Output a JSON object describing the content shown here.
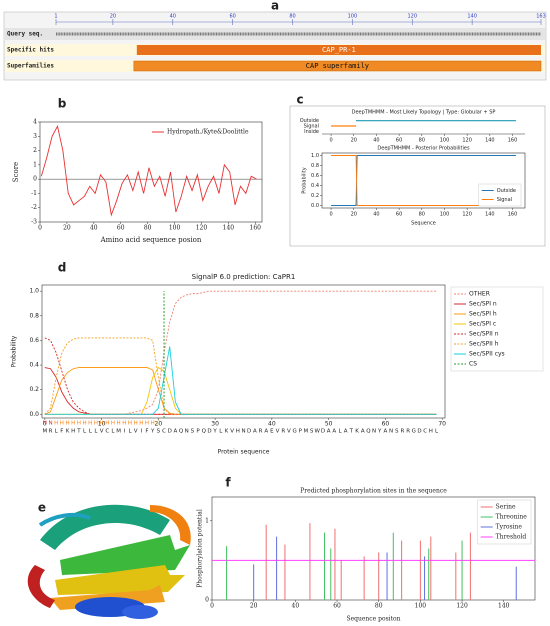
{
  "panel_labels": [
    "a",
    "b",
    "c",
    "d",
    "e",
    "f"
  ],
  "domain_map": {
    "ruler": [
      1,
      20,
      40,
      60,
      80,
      100,
      120,
      140,
      163
    ],
    "rows": [
      {
        "label": "Query seq."
      },
      {
        "label": "Specific hits",
        "domain": "CAP_PR-1",
        "start": 28,
        "end": 163,
        "color": "#e8701a"
      },
      {
        "label": "Superfamilies",
        "domain": "CAP superfamily",
        "start": 27,
        "end": 163,
        "color": "#f08a24"
      }
    ]
  },
  "chart_data": [
    {
      "type": "line",
      "xlabel": "Amino acid sequence posion",
      "ylabel": "Score",
      "xlim": [
        0,
        165
      ],
      "ylim": [
        -3,
        4
      ],
      "xticks": [
        0,
        20,
        40,
        60,
        80,
        100,
        120,
        140,
        160
      ],
      "yticks": [
        -3,
        -2,
        -1,
        0,
        1,
        2,
        3,
        4
      ],
      "grid": false,
      "legend": "upper right",
      "hline": 0,
      "x": [
        1,
        5,
        9,
        13,
        17,
        21,
        25,
        29,
        33,
        37,
        41,
        45,
        49,
        53,
        57,
        61,
        65,
        69,
        73,
        77,
        81,
        85,
        89,
        93,
        97,
        101,
        105,
        109,
        113,
        117,
        121,
        125,
        129,
        133,
        137,
        141,
        145,
        149,
        153,
        157,
        161
      ],
      "series": [
        {
          "name": "Hydropath./Kyte&Doolittle",
          "color": "#e83030",
          "values": [
            0.2,
            1.5,
            3.0,
            3.7,
            2.0,
            -1.0,
            -1.8,
            -1.5,
            -1.2,
            -0.5,
            -1.0,
            0.3,
            -0.2,
            -2.5,
            -1.5,
            -0.3,
            0.3,
            -0.8,
            0.5,
            -1.0,
            0.8,
            -0.5,
            0.2,
            -1.2,
            0.5,
            -2.3,
            -1.2,
            0.2,
            -0.8,
            0.3,
            -1.5,
            -0.5,
            0.2,
            -1.0,
            1.0,
            0.5,
            -1.8,
            -0.5,
            -1.0,
            0.2,
            0.0
          ]
        }
      ]
    },
    {
      "type": "topology",
      "title": "DeepTMHMM - Most Likely Topology | Type: Globular + SP",
      "xlim": [
        -8,
        171
      ],
      "xticks": [
        0,
        20,
        40,
        60,
        80,
        100,
        120,
        140,
        160
      ],
      "categories": [
        "Outside",
        "Signal",
        "Inside"
      ],
      "segments": [
        {
          "row": "Signal",
          "color": "#ff7f0e",
          "start": 0,
          "end": 22
        },
        {
          "row": "Outside",
          "color": "#1f9ab4",
          "start": 22,
          "end": 163
        }
      ]
    },
    {
      "type": "line",
      "title": "DeepTMHMM - Posterior Probabilities",
      "xlabel": "Sequence",
      "ylabel": "Probability",
      "xlim": [
        -8,
        171
      ],
      "ylim": [
        -0.05,
        1.05
      ],
      "xticks": [
        0,
        20,
        40,
        60,
        80,
        100,
        120,
        140,
        160
      ],
      "yticks": [
        {
          "value": 0,
          "label": "0.0"
        },
        {
          "value": 0.2,
          "label": "0.2"
        },
        {
          "value": 0.4,
          "label": "0.4"
        },
        {
          "value": 0.6,
          "label": "0.6"
        },
        {
          "value": 0.8,
          "label": "0.8"
        },
        {
          "value": 1,
          "label": "1.0"
        }
      ],
      "legend": "lower right",
      "x": [
        0,
        22,
        23,
        163
      ],
      "series": [
        {
          "name": "Outside",
          "color": "#1f77b4",
          "values": [
            0,
            0,
            1,
            1
          ]
        },
        {
          "name": "Signal",
          "color": "#ff7f0e",
          "values": [
            1,
            1,
            0,
            0
          ]
        }
      ]
    },
    {
      "type": "line",
      "title": "SignalP 6.0 prediction: CaPR1",
      "xlabel": "Protein sequence",
      "ylabel": "Probability",
      "xlim": [
        -0.5,
        70.5
      ],
      "ylim": [
        -0.03,
        1.05
      ],
      "xticks": [
        0,
        10,
        20,
        30,
        40,
        50,
        60,
        70
      ],
      "yticks": [
        {
          "value": 0,
          "label": "0.0"
        },
        {
          "value": 0.2,
          "label": "0.2"
        },
        {
          "value": 0.4,
          "label": "0.4"
        },
        {
          "value": 0.6,
          "label": "0.6"
        },
        {
          "value": 0.8,
          "label": "0.8"
        },
        {
          "value": 1,
          "label": "1.0"
        }
      ],
      "legend": "outside right",
      "categories": [
        "M",
        "R",
        "L",
        "F",
        "K",
        "H",
        "T",
        "L",
        "L",
        "L",
        "V",
        "C",
        "L",
        "M",
        "I",
        "L",
        "V",
        "I",
        "F",
        "Y",
        "S",
        "C",
        "D",
        "A",
        "Q",
        "N",
        "S",
        "P",
        "Q",
        "D",
        "Y",
        "L",
        "K",
        "V",
        "H",
        "N",
        "D",
        "A",
        "R",
        "A",
        "E",
        "V",
        "R",
        "V",
        "G",
        "P",
        "M",
        "S",
        "W",
        "D",
        "A",
        "A",
        "L",
        "A",
        "T",
        "K",
        "A",
        "Q",
        "N",
        "Y",
        "A",
        "N",
        "S",
        "R",
        "R",
        "G",
        "D",
        "C",
        "H",
        "L"
      ],
      "region_labels": [
        "N",
        "N",
        "H",
        "H",
        "H",
        "H",
        "H",
        "H",
        "H",
        "H",
        "H",
        "H",
        "H",
        "H",
        "H",
        "H",
        "H",
        "H",
        "H",
        "H",
        "C"
      ],
      "region_colors": {
        "N": "#d62728",
        "H": "#ff7f0e",
        "C": "#e0b000"
      },
      "series": [
        {
          "name": "OTHER",
          "color": "#f08070",
          "dash": true,
          "values": [
            0,
            0,
            0,
            0,
            0,
            0,
            0,
            0,
            0,
            0,
            0,
            0,
            0,
            0,
            0,
            0.01,
            0.02,
            0.03,
            0.05,
            0.08,
            0.2,
            0.5,
            0.75,
            0.9,
            0.95,
            0.97,
            0.98,
            0.98,
            0.99,
            1,
            1,
            1,
            1,
            1,
            1,
            1,
            1,
            1,
            1,
            1,
            1,
            1,
            1,
            1,
            1,
            1,
            1,
            1,
            1,
            1,
            1,
            1,
            1,
            1,
            1,
            1,
            1,
            1,
            1,
            1,
            1,
            1,
            1,
            1,
            1,
            1,
            1,
            1,
            1,
            1
          ]
        },
        {
          "name": "Sec/SPI n",
          "color": "#d62728",
          "dash": false,
          "values": [
            0.38,
            0.37,
            0.3,
            0.18,
            0.1,
            0.05,
            0.02,
            0.01,
            0,
            0,
            0,
            0,
            0,
            0,
            0,
            0,
            0,
            0,
            0,
            0,
            0,
            0,
            0,
            0,
            0,
            0,
            0,
            0,
            0,
            0,
            0,
            0,
            0,
            0,
            0,
            0,
            0,
            0,
            0,
            0,
            0,
            0,
            0,
            0,
            0,
            0,
            0,
            0,
            0,
            0,
            0,
            0,
            0,
            0,
            0,
            0,
            0,
            0,
            0,
            0,
            0,
            0,
            0,
            0,
            0,
            0,
            0,
            0,
            0,
            0
          ]
        },
        {
          "name": "Sec/SPI h",
          "color": "#ff9a1a",
          "dash": false,
          "values": [
            0,
            0.02,
            0.15,
            0.28,
            0.34,
            0.37,
            0.38,
            0.38,
            0.38,
            0.38,
            0.38,
            0.38,
            0.38,
            0.38,
            0.38,
            0.38,
            0.38,
            0.38,
            0.38,
            0.36,
            0.2,
            0.05,
            0.01,
            0,
            0,
            0,
            0,
            0,
            0,
            0,
            0,
            0,
            0,
            0,
            0,
            0,
            0,
            0,
            0,
            0,
            0,
            0,
            0,
            0,
            0,
            0,
            0,
            0,
            0,
            0,
            0,
            0,
            0,
            0,
            0,
            0,
            0,
            0,
            0,
            0,
            0,
            0,
            0,
            0,
            0,
            0,
            0,
            0,
            0,
            0
          ]
        },
        {
          "name": "Sec/SPI c",
          "color": "#f5c400",
          "dash": false,
          "values": [
            0,
            0,
            0,
            0,
            0,
            0,
            0,
            0,
            0,
            0,
            0,
            0,
            0,
            0,
            0,
            0,
            0,
            0,
            0.1,
            0.3,
            0.38,
            0.35,
            0.2,
            0.05,
            0,
            0,
            0,
            0,
            0,
            0,
            0,
            0,
            0,
            0,
            0,
            0,
            0,
            0,
            0,
            0,
            0,
            0,
            0,
            0,
            0,
            0,
            0,
            0,
            0,
            0,
            0,
            0,
            0,
            0,
            0,
            0,
            0,
            0,
            0,
            0,
            0,
            0,
            0,
            0,
            0,
            0,
            0,
            0,
            0,
            0
          ]
        },
        {
          "name": "Sec/SPII n",
          "color": "#d62728",
          "dash": true,
          "values": [
            0.62,
            0.6,
            0.5,
            0.35,
            0.2,
            0.1,
            0.05,
            0.02,
            0,
            0,
            0,
            0,
            0,
            0,
            0,
            0,
            0,
            0,
            0,
            0,
            0,
            0,
            0,
            0,
            0,
            0,
            0,
            0,
            0,
            0,
            0,
            0,
            0,
            0,
            0,
            0,
            0,
            0,
            0,
            0,
            0,
            0,
            0,
            0,
            0,
            0,
            0,
            0,
            0,
            0,
            0,
            0,
            0,
            0,
            0,
            0,
            0,
            0,
            0,
            0,
            0,
            0,
            0,
            0,
            0,
            0,
            0,
            0,
            0,
            0
          ]
        },
        {
          "name": "Sec/SPII h",
          "color": "#f5a020",
          "dash": true,
          "values": [
            0,
            0.05,
            0.3,
            0.5,
            0.58,
            0.61,
            0.62,
            0.62,
            0.62,
            0.62,
            0.62,
            0.62,
            0.62,
            0.62,
            0.62,
            0.62,
            0.62,
            0.62,
            0.62,
            0.6,
            0.3,
            0.05,
            0,
            0,
            0,
            0,
            0,
            0,
            0,
            0,
            0,
            0,
            0,
            0,
            0,
            0,
            0,
            0,
            0,
            0,
            0,
            0,
            0,
            0,
            0,
            0,
            0,
            0,
            0,
            0,
            0,
            0,
            0,
            0,
            0,
            0,
            0,
            0,
            0,
            0,
            0,
            0,
            0,
            0,
            0,
            0,
            0,
            0,
            0,
            0
          ]
        },
        {
          "name": "Sec/SPII cys",
          "color": "#17d0e0",
          "dash": false,
          "values": [
            0,
            0,
            0,
            0,
            0,
            0,
            0,
            0,
            0,
            0,
            0,
            0,
            0,
            0,
            0,
            0,
            0,
            0,
            0,
            0,
            0.05,
            0.3,
            0.55,
            0.1,
            0,
            0,
            0,
            0,
            0,
            0,
            0,
            0,
            0,
            0,
            0,
            0,
            0,
            0,
            0,
            0,
            0,
            0,
            0,
            0,
            0,
            0,
            0,
            0,
            0,
            0,
            0,
            0,
            0,
            0,
            0,
            0,
            0,
            0,
            0,
            0,
            0,
            0,
            0,
            0,
            0,
            0,
            0,
            0,
            0,
            0
          ]
        },
        {
          "name": "CS",
          "color": "#2ca02c",
          "dash": true,
          "position": 21
        }
      ]
    },
    {
      "type": "stem",
      "title": "Predicted phosphorylation sites in the sequence",
      "xlabel": "Sequence positon",
      "ylabel": "Phosphorylation potential",
      "xlim": [
        0,
        155
      ],
      "ylim": [
        0,
        1.3
      ],
      "xticks": [
        0,
        20,
        40,
        60,
        80,
        100,
        120,
        140
      ],
      "yticks": [
        0,
        1
      ],
      "legend": "upper right",
      "series": [
        {
          "name": "Serine",
          "color": "#f07070",
          "x": [
            26,
            35,
            47,
            59,
            62,
            73,
            80,
            91,
            100,
            105,
            117,
            124
          ],
          "values": [
            0.95,
            0.7,
            0.97,
            0.9,
            0.5,
            0.55,
            0.6,
            0.75,
            0.75,
            0.8,
            0.6,
            0.85
          ]
        },
        {
          "name": "Threonine",
          "color": "#40c060",
          "x": [
            7,
            54,
            57,
            87,
            104,
            120
          ],
          "values": [
            0.68,
            0.85,
            0.65,
            0.85,
            0.65,
            0.75
          ]
        },
        {
          "name": "Tyrosine",
          "color": "#6070e0",
          "x": [
            20,
            31,
            84,
            102,
            146
          ],
          "values": [
            0.45,
            0.8,
            0.6,
            0.55,
            0.42
          ]
        }
      ],
      "threshold": {
        "name": "Threshold",
        "color": "#ff40ff",
        "value": 0.5
      }
    }
  ]
}
